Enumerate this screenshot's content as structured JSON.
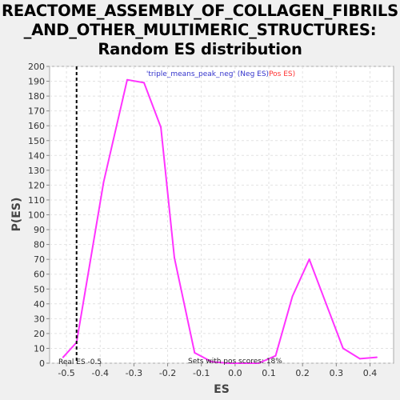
{
  "title_lines": [
    "REACTOME_ASSEMBLY_OF_COLLAGEN_FIBRILS",
    "_AND_OTHER_MULTIMERIC_STRUCTURES:",
    "Random ES distribution"
  ],
  "chart_data": {
    "type": "line",
    "xlabel": "ES",
    "ylabel": "P(ES)",
    "xlim": [
      -0.55,
      0.47
    ],
    "ylim": [
      0,
      200
    ],
    "xticks": [
      -0.5,
      -0.4,
      -0.3,
      -0.2,
      -0.1,
      0.0,
      0.1,
      0.2,
      0.3,
      0.4
    ],
    "xtick_labels": [
      "-0.5",
      "-0.4",
      "-0.3",
      "-0.2",
      "-0.1",
      "0.0",
      "0.1",
      "0.2",
      "0.3",
      "0.4"
    ],
    "yticks": [
      0,
      10,
      20,
      30,
      40,
      50,
      60,
      70,
      80,
      90,
      100,
      110,
      120,
      130,
      140,
      150,
      160,
      170,
      180,
      190,
      200
    ],
    "ytick_labels": [
      "0",
      "10",
      "20",
      "30",
      "40",
      "50",
      "60",
      "70",
      "80",
      "90",
      "100",
      "110",
      "120",
      "130",
      "140",
      "150",
      "160",
      "170",
      "180",
      "190",
      "200"
    ],
    "grid": true,
    "legend": {
      "placement": "top-center",
      "neg_label": "'triple_means_peak_neg' (Neg ES)",
      "pos_label": "Pos ES)"
    },
    "series": [
      {
        "color": "#ff33ff",
        "x": [
          -0.51,
          -0.47,
          -0.43,
          -0.39,
          -0.32,
          -0.27,
          -0.22,
          -0.18,
          -0.12,
          -0.07,
          -0.02,
          0.02,
          0.07,
          0.12,
          0.17,
          0.22,
          0.27,
          0.32,
          0.37,
          0.42
        ],
        "y": [
          4,
          14,
          68,
          122,
          191,
          189,
          159,
          71,
          7,
          1,
          0,
          0,
          0,
          5,
          45,
          70,
          40,
          10,
          3,
          4
        ]
      }
    ],
    "real_es": -0.47,
    "real_es_label": "Real ES -0.5",
    "annotation": "Sets with pos scores: 18%",
    "colors": {
      "neg": "#3333cc",
      "pos": "#ff3333",
      "line": "#ff33ff",
      "real_es": "#000000"
    }
  }
}
